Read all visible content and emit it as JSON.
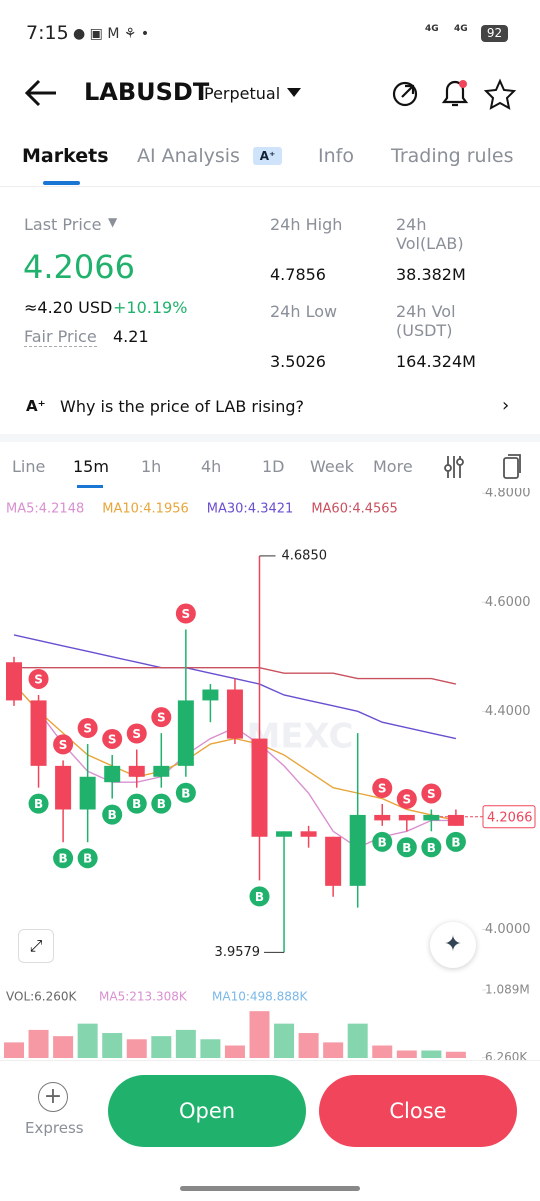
{
  "status_bar": {
    "time": "7:15",
    "network_1": "4G",
    "network_2": "4G",
    "battery": "92"
  },
  "header": {
    "symbol": "LABUSDT",
    "contract": "Perpetual"
  },
  "tabs": [
    "Markets",
    "AI Analysis",
    "Info",
    "Trading rules"
  ],
  "stats": {
    "last_price_label": "Last Price",
    "last_price": "4.2066",
    "approx_price": "≈4.20 USD",
    "change": "+10.19%",
    "fair_price_label": "Fair Price",
    "fair_price": "4.21",
    "high_label": "24h High",
    "high": "4.7856",
    "low_label": "24h Low",
    "low": "3.5026",
    "vol_lab_label": "24h Vol(LAB)",
    "vol_lab": "38.382M",
    "vol_usdt_label": "24h Vol (USDT)",
    "vol_usdt": "164.324M"
  },
  "insight": "Why is the price of LAB rising?",
  "timeframes": [
    "Line",
    "15m",
    "1h",
    "4h",
    "1D",
    "Week",
    "More"
  ],
  "chart_data": {
    "type": "candlestick",
    "watermark": "MEXC",
    "ylim": [
      3.9,
      4.815
    ],
    "yticks": [
      {
        "value": 4.8,
        "label": "4.8000"
      },
      {
        "value": 4.6,
        "label": "4.6000"
      },
      {
        "value": 4.4,
        "label": "4.4000"
      },
      {
        "value": 4.0,
        "label": "4.0000"
      }
    ],
    "up_color": "#20b26c",
    "down_color": "#f0455a",
    "open": [
      4.49,
      4.42,
      4.3,
      4.22,
      4.27,
      4.3,
      4.28,
      4.3,
      4.42,
      4.44,
      4.35,
      4.17,
      4.18,
      4.17,
      4.08,
      4.21,
      4.21,
      4.2,
      4.21
    ],
    "high": [
      4.5,
      4.43,
      4.31,
      4.34,
      4.32,
      4.33,
      4.36,
      4.55,
      4.45,
      4.46,
      4.685,
      4.18,
      4.19,
      4.17,
      4.36,
      4.23,
      4.21,
      4.22,
      4.22
    ],
    "low": [
      4.41,
      4.26,
      4.16,
      4.16,
      4.24,
      4.26,
      4.26,
      4.28,
      4.38,
      4.34,
      4.09,
      3.9579,
      4.15,
      4.06,
      4.04,
      4.19,
      4.18,
      4.18,
      4.19
    ],
    "close": [
      4.42,
      4.3,
      4.22,
      4.28,
      4.3,
      4.28,
      4.3,
      4.42,
      4.44,
      4.35,
      4.17,
      4.18,
      4.17,
      4.08,
      4.21,
      4.2,
      4.2,
      4.21,
      4.19
    ],
    "series": [
      {
        "name": "MA5:4.2148",
        "color": "#d98fd0",
        "values": [
          4.45,
          4.4,
          4.34,
          4.29,
          4.27,
          4.27,
          4.28,
          4.32,
          4.35,
          4.37,
          4.34,
          4.3,
          4.25,
          4.18,
          4.15,
          4.17,
          4.18,
          4.2,
          4.2
        ]
      },
      {
        "name": "MA10:4.1956",
        "color": "#e8a53a",
        "values": [
          4.45,
          4.4,
          4.36,
          4.32,
          4.3,
          4.28,
          4.29,
          4.31,
          4.34,
          4.35,
          4.34,
          4.32,
          4.29,
          4.26,
          4.25,
          4.24,
          4.22,
          4.21,
          4.2
        ]
      },
      {
        "name": "MA30:4.3421",
        "color": "#6a4fd0",
        "values": [
          4.54,
          4.53,
          4.52,
          4.51,
          4.5,
          4.49,
          4.48,
          4.48,
          4.47,
          4.46,
          4.45,
          4.43,
          4.42,
          4.41,
          4.4,
          4.38,
          4.37,
          4.36,
          4.35
        ]
      },
      {
        "name": "MA60:4.4565",
        "color": "#c9505e",
        "values": [
          4.48,
          4.48,
          4.48,
          4.48,
          4.48,
          4.48,
          4.48,
          4.48,
          4.48,
          4.48,
          4.48,
          4.47,
          4.47,
          4.47,
          4.46,
          4.46,
          4.46,
          4.46,
          4.45
        ]
      }
    ],
    "markers": [
      {
        "side": "S",
        "color": "#f0455a",
        "index": 1
      },
      {
        "side": "S",
        "color": "#f0455a",
        "index": 2
      },
      {
        "side": "S",
        "color": "#f0455a",
        "index": 3
      },
      {
        "side": "S",
        "color": "#f0455a",
        "index": 4
      },
      {
        "side": "S",
        "color": "#f0455a",
        "index": 5
      },
      {
        "side": "S",
        "color": "#f0455a",
        "index": 6
      },
      {
        "side": "S",
        "color": "#f0455a",
        "index": 7
      },
      {
        "side": "S",
        "color": "#f0455a",
        "index": 15
      },
      {
        "side": "S",
        "color": "#f0455a",
        "index": 16
      },
      {
        "side": "S",
        "color": "#f0455a",
        "index": 17
      },
      {
        "side": "B",
        "color": "#20b26c",
        "index": 1
      },
      {
        "side": "B",
        "color": "#20b26c",
        "index": 2
      },
      {
        "side": "B",
        "color": "#20b26c",
        "index": 3
      },
      {
        "side": "B",
        "color": "#20b26c",
        "index": 4
      },
      {
        "side": "B",
        "color": "#20b26c",
        "index": 5
      },
      {
        "side": "B",
        "color": "#20b26c",
        "index": 6
      },
      {
        "side": "B",
        "color": "#20b26c",
        "index": 7
      },
      {
        "side": "B",
        "color": "#20b26c",
        "index": 10
      },
      {
        "side": "B",
        "color": "#20b26c",
        "index": 15
      },
      {
        "side": "B",
        "color": "#20b26c",
        "index": 16
      },
      {
        "side": "B",
        "color": "#20b26c",
        "index": 17
      },
      {
        "side": "B",
        "color": "#20b26c",
        "index": 18
      }
    ],
    "high_annotation": {
      "value": 4.685,
      "label": "4.6850",
      "index": 10
    },
    "low_annotation": {
      "value": 3.9579,
      "label": "3.9579",
      "index": 11
    },
    "last_price": 4.2066,
    "volume": {
      "label": "VOL:6.260K",
      "ma5_label": "MA5:213.308K",
      "ma10_label": "MA10:498.888K",
      "ylim": [
        0,
        1.089
      ],
      "yticks": [
        {
          "value": 1.089,
          "label": "1.089M"
        },
        {
          "value": 0.00626,
          "label": "6.260K"
        }
      ],
      "values": [
        0.25,
        0.45,
        0.35,
        0.55,
        0.4,
        0.3,
        0.35,
        0.45,
        0.3,
        0.2,
        0.75,
        0.55,
        0.4,
        0.25,
        0.55,
        0.2,
        0.12,
        0.12,
        0.1
      ]
    }
  },
  "actions": {
    "express": "Express",
    "open": "Open",
    "close": "Close"
  }
}
